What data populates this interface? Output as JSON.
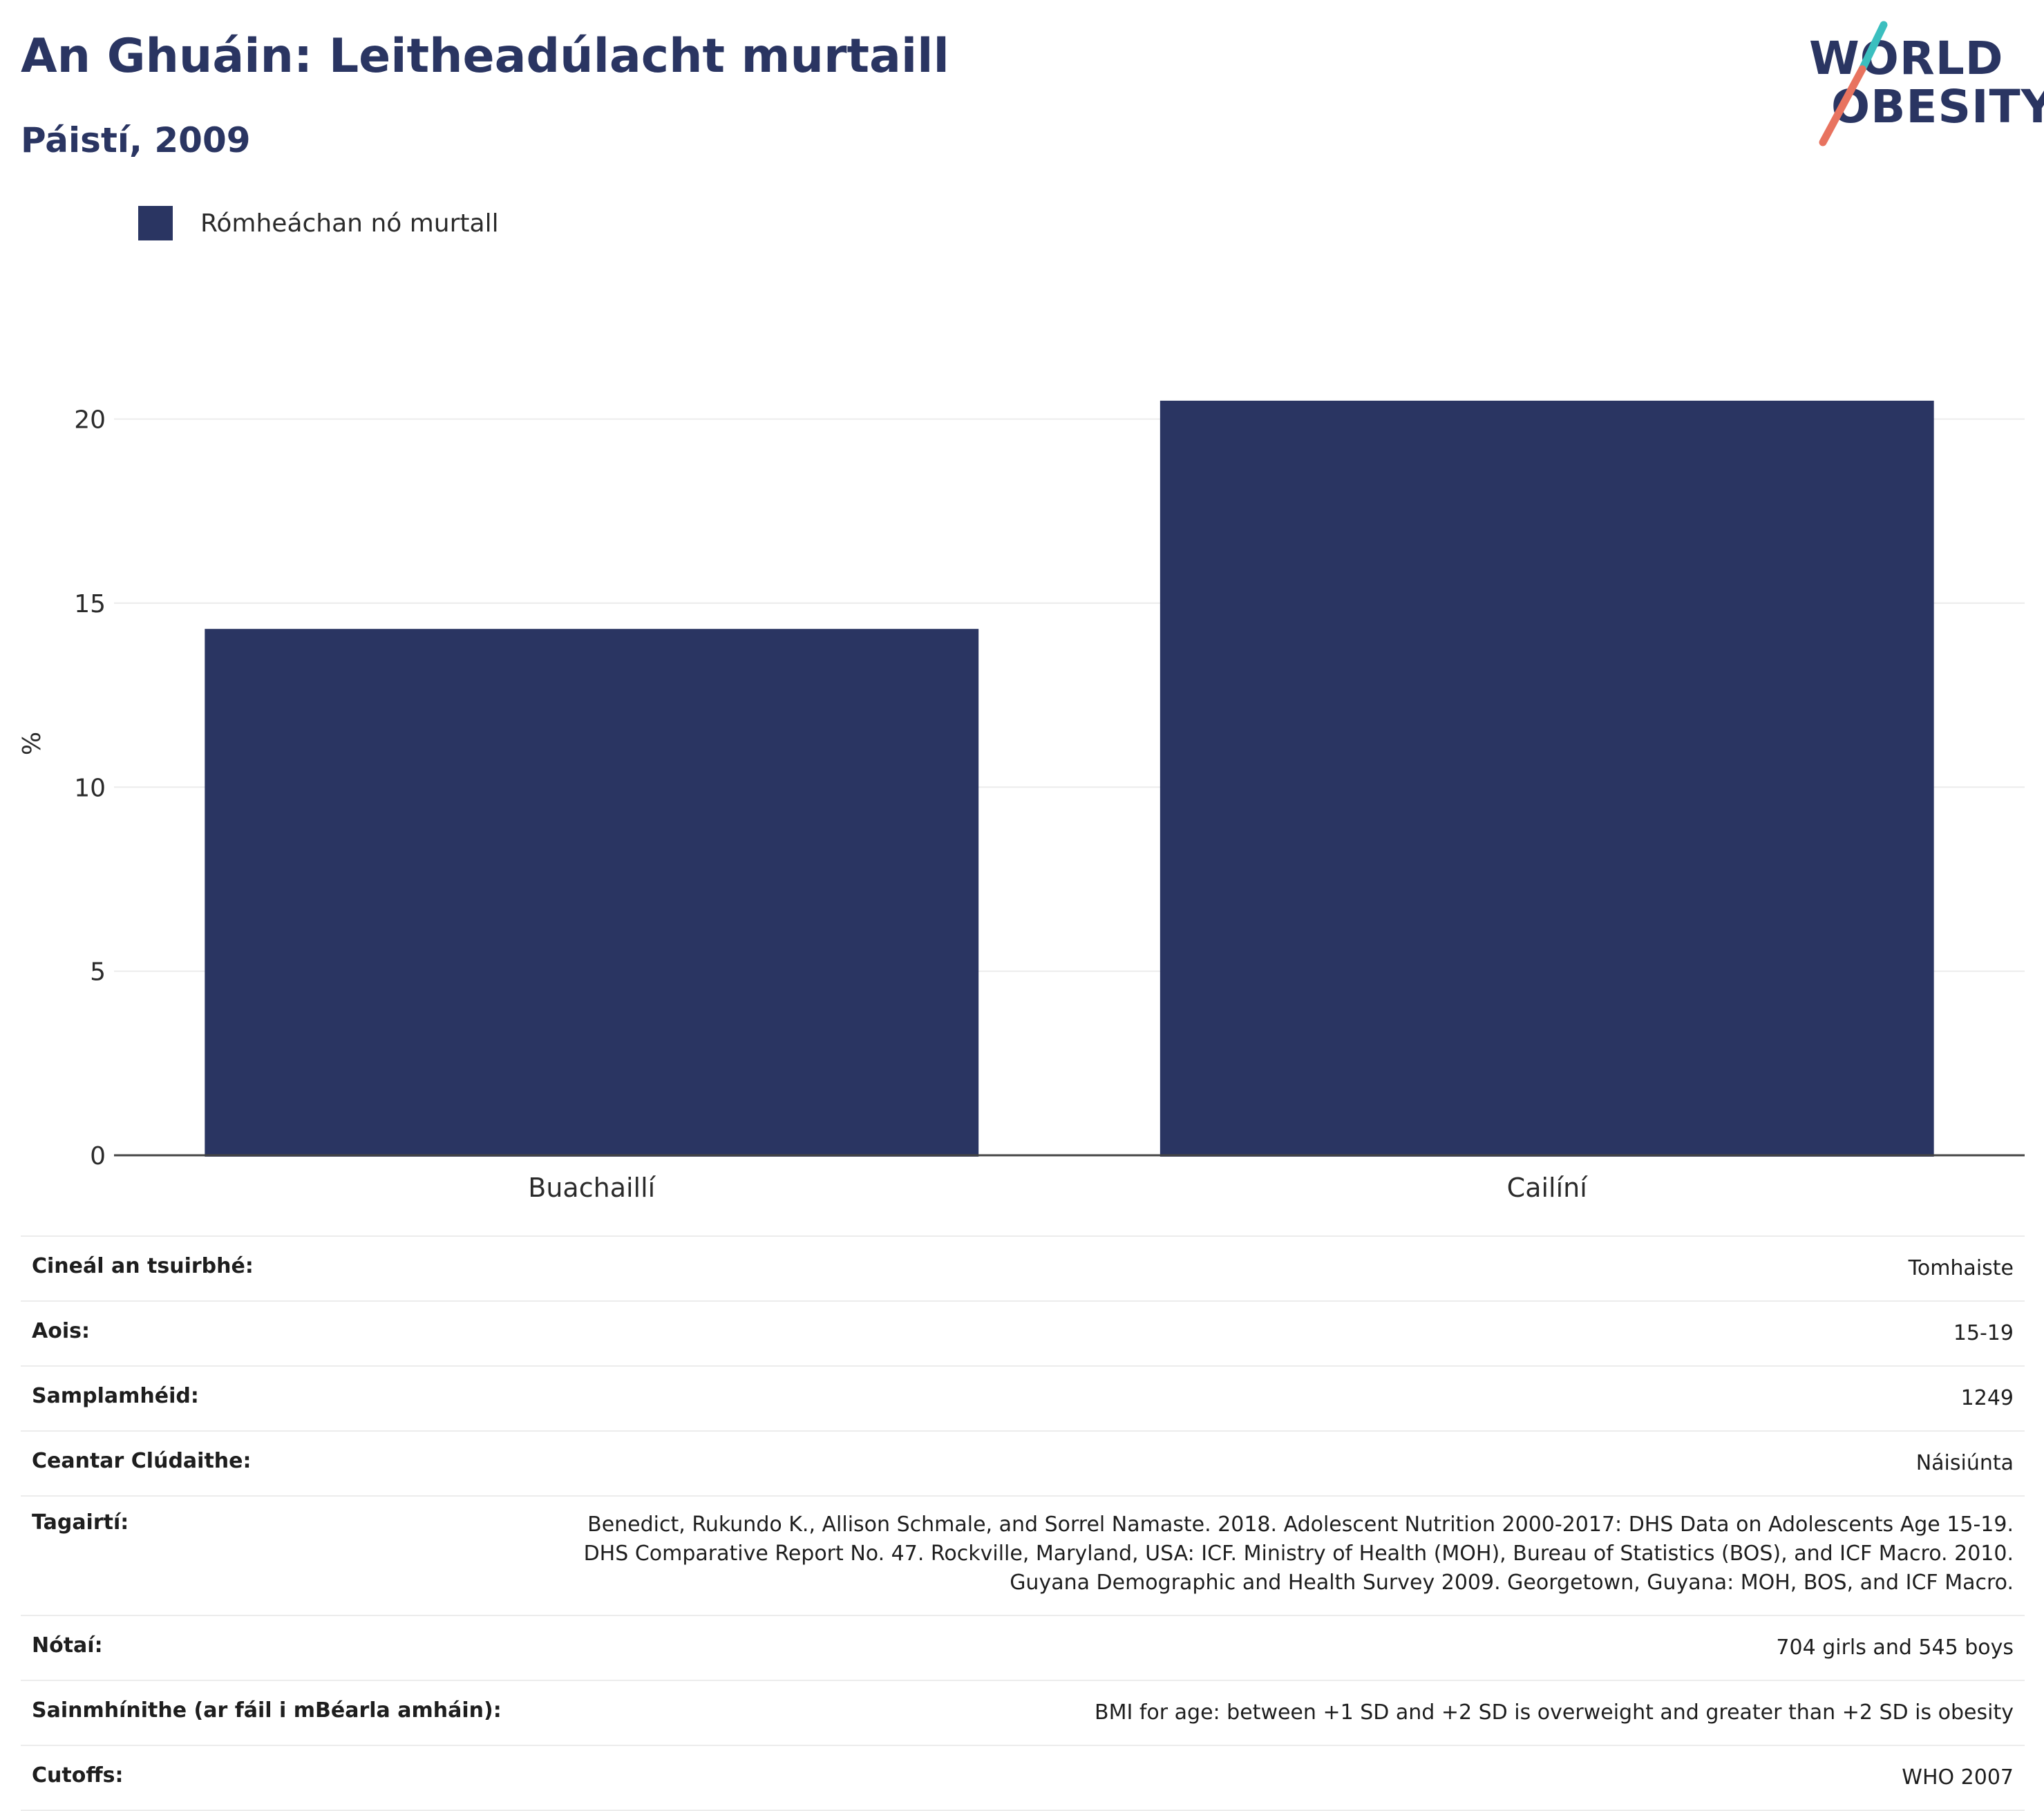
{
  "header": {
    "title": "An Ghuáin: Leitheadúlacht murtaill",
    "subtitle": "Páistí, 2009"
  },
  "logo": {
    "line1": "WORLD",
    "line2": "OBESITY",
    "colors": {
      "navy": "#2a3562",
      "teal": "#3bbfbf",
      "coral": "#e8735f"
    }
  },
  "chart_data": {
    "type": "bar",
    "categories": [
      "Buachaillí",
      "Cailíní"
    ],
    "series": [
      {
        "name": "Rómheáchan nó murtall",
        "values": [
          14.3,
          20.5
        ],
        "color": "#2a3562"
      }
    ],
    "ylabel": "%",
    "ylim": [
      0,
      22
    ],
    "yticks": [
      0,
      5,
      10,
      15,
      20
    ],
    "grid": true,
    "legend": "top-left"
  },
  "meta": {
    "rows": [
      {
        "key": "Cineál an tsuirbhé:",
        "value": "Tomhaiste"
      },
      {
        "key": "Aois:",
        "value": "15-19"
      },
      {
        "key": "Samplamhéid:",
        "value": "1249"
      },
      {
        "key": "Ceantar Clúdaithe:",
        "value": "Náisiúnta"
      },
      {
        "key": "Tagairtí:",
        "value": "Benedict, Rukundo K., Allison Schmale, and Sorrel Namaste. 2018. Adolescent Nutrition 2000-2017: DHS Data on Adolescents Age 15-19. DHS Comparative Report No. 47. Rockville, Maryland, USA: ICF. Ministry of Health (MOH), Bureau of Statistics (BOS), and ICF Macro. 2010. Guyana Demographic and Health Survey 2009. Georgetown, Guyana: MOH, BOS, and ICF Macro."
      },
      {
        "key": "Nótaí:",
        "value": "704 girls and 545 boys"
      },
      {
        "key": "Sainmhínithe (ar fáil i mBéarla amháin):",
        "value": "BMI for age: between +1 SD and +2 SD is overweight and greater than +2 SD is obesity"
      },
      {
        "key": "Cutoffs:",
        "value": "WHO 2007"
      }
    ]
  }
}
